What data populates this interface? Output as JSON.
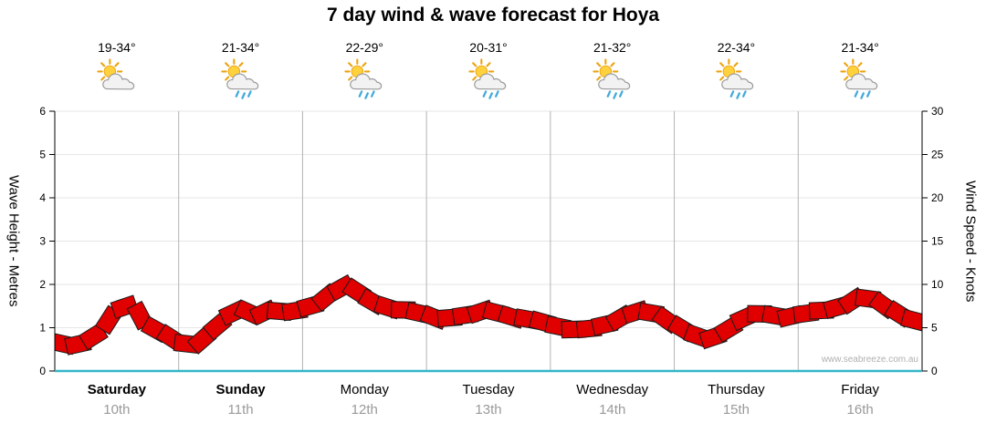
{
  "title": "7 day wind & wave forecast for Hoya",
  "watermark": "www.seabreeze.com.au",
  "left_axis": {
    "label": "Wave Height - Metres",
    "ticks": [
      0,
      1,
      2,
      3,
      4,
      5,
      6
    ]
  },
  "right_axis": {
    "label": "Wind Speed - Knots",
    "ticks": [
      0,
      5,
      10,
      15,
      20,
      25,
      30
    ]
  },
  "days": [
    {
      "name": "Saturday",
      "date": "10th",
      "temp": "19-34°",
      "icon": "partly-cloudy",
      "bold": true
    },
    {
      "name": "Sunday",
      "date": "11th",
      "temp": "21-34°",
      "icon": "partly-cloudy-rain",
      "bold": true
    },
    {
      "name": "Monday",
      "date": "12th",
      "temp": "22-29°",
      "icon": "partly-cloudy-rain",
      "bold": false
    },
    {
      "name": "Tuesday",
      "date": "13th",
      "temp": "20-31°",
      "icon": "partly-cloudy-rain",
      "bold": false
    },
    {
      "name": "Wednesday",
      "date": "14th",
      "temp": "21-32°",
      "icon": "partly-cloudy-rain",
      "bold": false
    },
    {
      "name": "Thursday",
      "date": "15th",
      "temp": "22-34°",
      "icon": "partly-cloudy-rain",
      "bold": false
    },
    {
      "name": "Friday",
      "date": "16th",
      "temp": "21-34°",
      "icon": "partly-cloudy-rain",
      "bold": false
    }
  ],
  "chart_data": {
    "type": "area",
    "title": "7 day wind & wave forecast for Hoya",
    "categories": [
      "Saturday 10th",
      "Sunday 11th",
      "Monday 12th",
      "Tuesday 13th",
      "Wednesday 14th",
      "Thursday 15th",
      "Friday 16th"
    ],
    "points_per_day": 8,
    "y_left": {
      "label": "Wave Height - Metres",
      "range": [
        0,
        6
      ]
    },
    "y_right": {
      "label": "Wind Speed - Knots",
      "range": [
        0,
        30
      ]
    },
    "grid": true,
    "legend": false,
    "series": [
      {
        "name": "Wind Speed",
        "unit": "knots",
        "axis": "right",
        "style": "jagged-red-band",
        "values": [
          3.5,
          2.8,
          3.4,
          4.6,
          7.2,
          7.6,
          5.2,
          4.4,
          3.3,
          3.0,
          4.2,
          6.2,
          7.2,
          6.4,
          7.1,
          6.7,
          7.2,
          7.8,
          9.2,
          10.0,
          8.4,
          7.6,
          7.1,
          7.0,
          6.4,
          6.0,
          6.3,
          6.6,
          7.1,
          6.4,
          6.1,
          5.9,
          5.4,
          4.9,
          4.7,
          5.1,
          5.6,
          6.6,
          7.0,
          6.4,
          5.4,
          4.4,
          3.7,
          4.1,
          5.6,
          6.6,
          6.6,
          6.2,
          6.4,
          6.9,
          7.1,
          7.6,
          8.6,
          8.1,
          7.1,
          6.1,
          5.6
        ]
      },
      {
        "name": "Wave Height",
        "unit": "m",
        "axis": "left",
        "style": "flat-teal-line",
        "constant_value": 0.1
      }
    ]
  },
  "colors": {
    "band": "#e00000",
    "band_outline": "#1a1a1a",
    "wave_line": "#33b6c9",
    "grid_day": "#b3b3b3",
    "grid_minor": "#e6e6e6",
    "axis": "#000000",
    "tick_text": "#000000",
    "date_text": "#9a9a9a",
    "watermark_text": "#b0b0b0",
    "sun": "#ffd23d",
    "sun_stroke": "#eca312",
    "cloud": "#f2f2f2",
    "cloud_stroke": "#999999",
    "rain": "#44aadd"
  }
}
